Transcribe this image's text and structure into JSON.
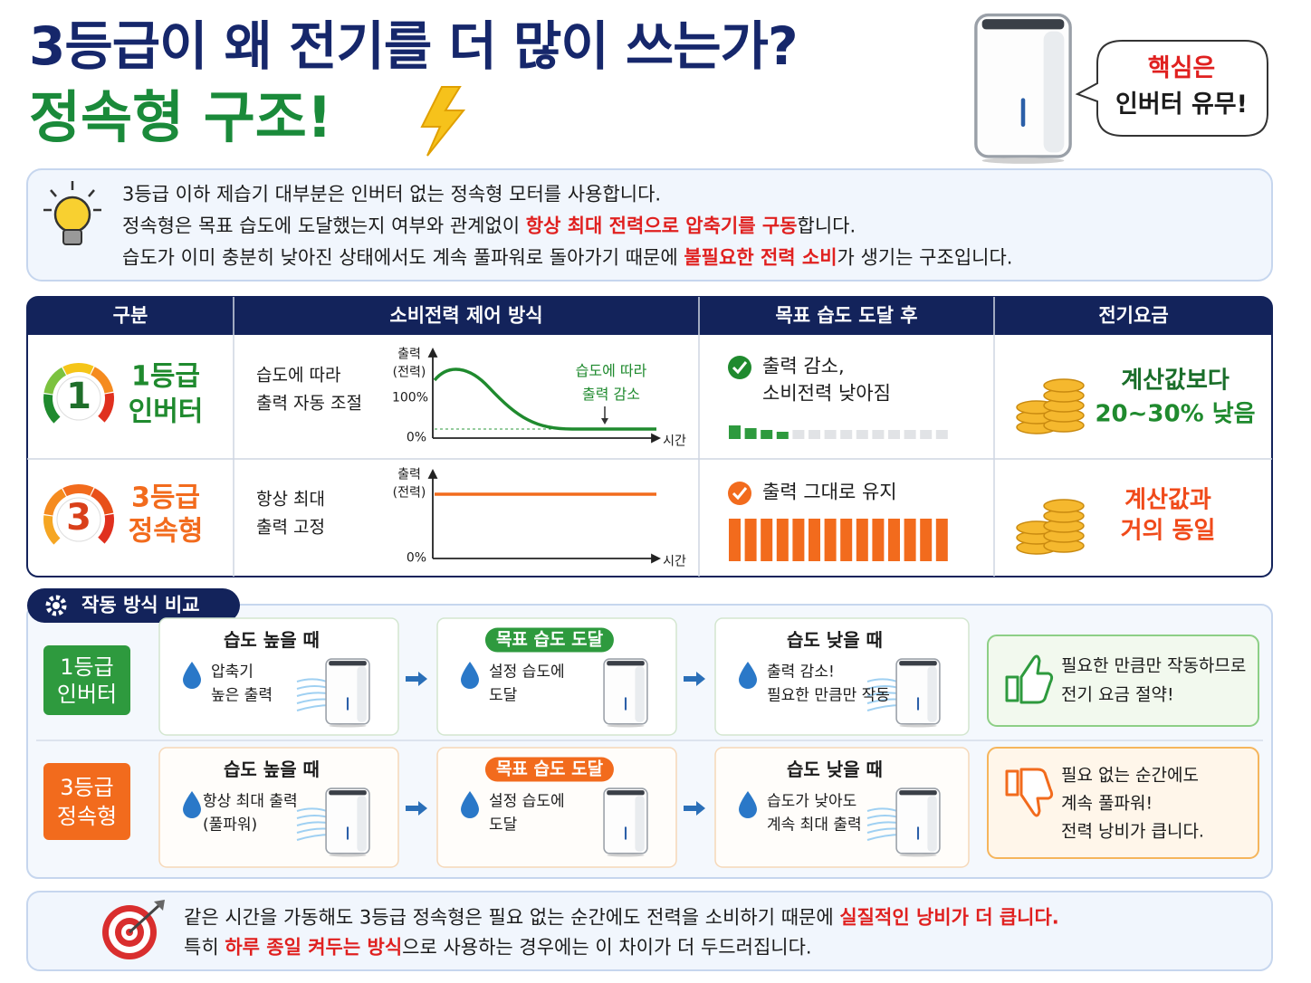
{
  "header": {
    "title_line1": "3등급이 왜 전기를 더 많이 쓰는가?",
    "title_line2": "정속형 구조!",
    "bubble": [
      "핵심은",
      "인버터 유무!"
    ]
  },
  "intro": {
    "lines": [
      [
        "3등급 이하 제습기 대부분은 인버터 없는 정속형 모터를 사용합니다."
      ],
      [
        "정속형은 목표 습도에 도달했는지 여부와 관계없이 ",
        "항상 최대 전력으로 압축기를 구동",
        "합니다."
      ],
      [
        "습도가 이미 충분히 낮아진 상태에서도 계속 풀파워로 돌아가기 때문에 ",
        "불필요한 전력 소비",
        "가 생기는 구조입니다."
      ]
    ]
  },
  "table": {
    "headers": [
      "구분",
      "소비전력 제어 방식",
      "목표 습도 도달 후",
      "전기요금"
    ],
    "rows": [
      {
        "grade_number": "1",
        "grade": [
          "1등급",
          "인버터"
        ],
        "method": [
          "습도에 따라",
          "출력 자동 조절"
        ],
        "graph": {
          "y_label": [
            "출력",
            "(전력)"
          ],
          "top": "100%",
          "zero": "0%",
          "x_label": "시간",
          "note": [
            "습도에 따라",
            "출력 감소"
          ]
        },
        "after": [
          "출력 감소,",
          "소비전력 낮아짐"
        ],
        "cost": [
          "계산값보다",
          "20~30% 낮음"
        ]
      },
      {
        "grade_number": "3",
        "grade": [
          "3등급",
          "정속형"
        ],
        "method": [
          "항상 최대",
          "출력 고정"
        ],
        "graph": {
          "y_label": [
            "출력",
            "(전력)"
          ],
          "zero": "0%",
          "x_label": "시간"
        },
        "after": [
          "출력 그대로 유지"
        ],
        "cost": [
          "계산값과",
          "거의 동일"
        ]
      }
    ]
  },
  "compare": {
    "title": "작동 방식 비교",
    "rows": [
      {
        "label": [
          "1등급",
          "인버터"
        ],
        "steps": [
          {
            "title": "습도 높을 때",
            "text": [
              "압축기",
              "높은 출력"
            ]
          },
          {
            "title": "목표 습도 도달",
            "text": [
              "설정 습도에",
              "도달"
            ]
          },
          {
            "title": "습도 낮을 때",
            "text": [
              "출력 감소!",
              "필요한 만큼만 작동"
            ]
          }
        ],
        "result": [
          "필요한 만큼만 작동하므로",
          "전기 요금 절약!"
        ]
      },
      {
        "label": [
          "3등급",
          "정속형"
        ],
        "steps": [
          {
            "title": "습도 높을 때",
            "text": [
              "항상 최대 출력",
              "(풀파워)"
            ]
          },
          {
            "title": "목표 습도 도달",
            "text": [
              "설정 습도에",
              "도달"
            ]
          },
          {
            "title": "습도 낮을 때",
            "text": [
              "습도가 낮아도",
              "계속 최대 출력"
            ]
          }
        ],
        "result": [
          "필요 없는 순간에도",
          "계속 풀파워!",
          "전력 낭비가 큽니다."
        ]
      }
    ]
  },
  "footer": {
    "lines": [
      [
        "같은 시간을 가동해도 3등급 정속형은 필요 없는 순간에도 전력을 소비하기 때문에 ",
        "실질적인 낭비가 더 큽니다."
      ],
      [
        "특히 ",
        "하루 종일 켜두는 방식",
        "으로 사용하는 경우에는 이 차이가 더 두드러집니다."
      ]
    ]
  }
}
